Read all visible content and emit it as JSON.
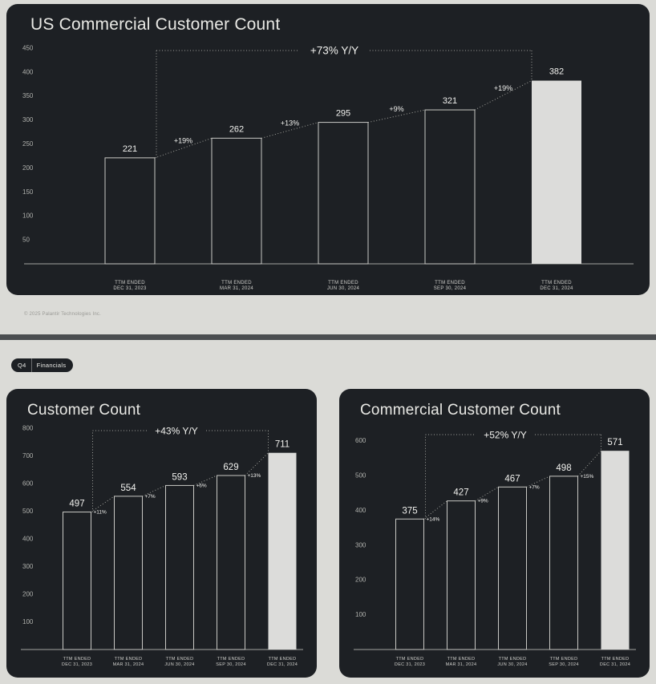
{
  "page": {
    "background": "#dbdbd7",
    "card_background": "#1d2024",
    "divider_color": "#4b4e50"
  },
  "badge": {
    "quarter": "Q4",
    "section": "Financials"
  },
  "footer": {
    "copyright": "© 2025 Palantir Technologies Inc."
  },
  "colors": {
    "accent_bar_fill": "#dcdcda",
    "bar_outline": "#c8c8c4",
    "axis_line": "#a2a39f",
    "dotted_line": "#a0a19b",
    "text_light": "#f1f1ee",
    "text_muted": "#b0b1ad",
    "category_label": "#cfcfcb",
    "title_color": "#e9e9e5"
  },
  "chart_data": [
    {
      "type": "bar",
      "title": "US Commercial Customer Count",
      "categories": [
        "TTM ENDED\nDEC 31, 2023",
        "TTM ENDED\nMAR 31, 2024",
        "TTM ENDED\nJUN 30, 2024",
        "TTM ENDED\nSEP 30, 2024",
        "TTM ENDED\nDEC 31, 2024"
      ],
      "values": [
        221,
        262,
        295,
        321,
        382
      ],
      "pct_changes": [
        "+19%",
        "+13%",
        "+9%",
        "+19%"
      ],
      "yoy_change": "+73% Y/Y",
      "y_ticks": [
        50,
        100,
        150,
        200,
        250,
        300,
        350,
        400,
        450
      ],
      "ylim": [
        0,
        450
      ],
      "xlabel": "",
      "ylabel": "",
      "grid": false,
      "legend": false,
      "highlight_last_bar": true
    },
    {
      "type": "bar",
      "title": "Customer Count",
      "categories": [
        "TTM ENDED\nDEC 31, 2023",
        "TTM ENDED\nMAR 31, 2024",
        "TTM ENDED\nJUN 30, 2024",
        "TTM ENDED\nSEP 30, 2024",
        "TTM ENDED\nDEC 31, 2024"
      ],
      "values": [
        497,
        554,
        593,
        629,
        711
      ],
      "pct_changes": [
        "+11%",
        "+7%",
        "+6%",
        "+13%"
      ],
      "yoy_change": "+43% Y/Y",
      "y_ticks": [
        100,
        200,
        300,
        400,
        500,
        600,
        700,
        800
      ],
      "ylim": [
        0,
        800
      ],
      "xlabel": "",
      "ylabel": "",
      "grid": false,
      "legend": false,
      "highlight_last_bar": true
    },
    {
      "type": "bar",
      "title": "Commercial Customer Count",
      "categories": [
        "TTM ENDED\nDEC 31, 2023",
        "TTM ENDED\nMAR 31, 2024",
        "TTM ENDED\nJUN 30, 2024",
        "TTM ENDED\nSEP 30, 2024",
        "TTM ENDED\nDEC 31, 2024"
      ],
      "values": [
        375,
        427,
        467,
        498,
        571
      ],
      "pct_changes": [
        "+14%",
        "+9%",
        "+7%",
        "+15%"
      ],
      "yoy_change": "+52% Y/Y",
      "y_ticks": [
        100,
        200,
        300,
        400,
        500,
        600
      ],
      "ylim": [
        0,
        600
      ],
      "xlabel": "",
      "ylabel": "",
      "grid": false,
      "legend": false,
      "highlight_last_bar": true
    }
  ]
}
